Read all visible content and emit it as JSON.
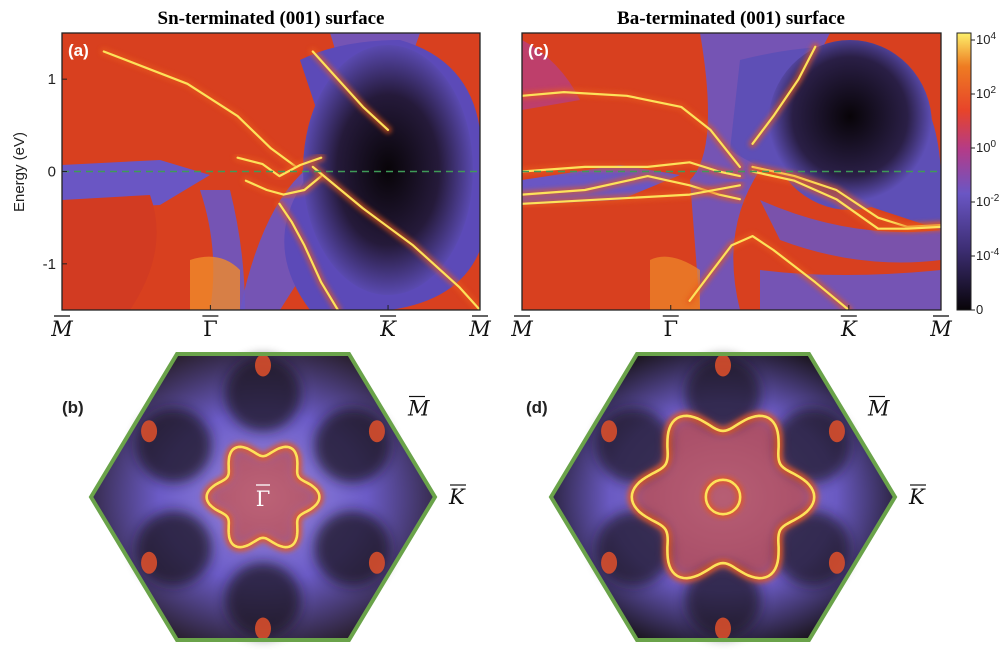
{
  "colors": {
    "low": "#080408",
    "purple": "#6a56c4",
    "mid": "#d4321f",
    "orange": "#e7581b",
    "high": "#fde25a",
    "hex_edge": "#6aa34a",
    "fermi": "#3f9a57"
  },
  "chart_data": [
    {
      "type": "heatmap",
      "panel": "(a)",
      "title": "Sn-terminated (001) surface",
      "ylabel": "Energy (eV)",
      "ylim": [
        -1.5,
        1.5
      ],
      "y_ticks": [
        "1",
        "0",
        "-1"
      ],
      "x_ticks": [
        "M",
        "Γ",
        "K",
        "M"
      ],
      "x_tick_style": [
        "italic",
        "upright",
        "italic",
        "italic"
      ],
      "fermi_level": 0,
      "bands": [
        [
          [
            0.1,
            1.3
          ],
          [
            0.3,
            0.95
          ],
          [
            0.42,
            0.6
          ],
          [
            0.5,
            0.25
          ],
          [
            0.56,
            0.05
          ]
        ],
        [
          [
            0.42,
            0.15
          ],
          [
            0.48,
            0.08
          ],
          [
            0.52,
            -0.05
          ],
          [
            0.57,
            0.07
          ],
          [
            0.62,
            0.15
          ]
        ],
        [
          [
            0.44,
            -0.1
          ],
          [
            0.49,
            -0.2
          ],
          [
            0.53,
            -0.25
          ],
          [
            0.58,
            -0.2
          ],
          [
            0.62,
            -0.05
          ]
        ],
        [
          [
            0.6,
            0.05
          ],
          [
            0.72,
            -0.4
          ],
          [
            0.84,
            -0.8
          ],
          [
            0.95,
            -1.25
          ],
          [
            1.0,
            -1.5
          ]
        ],
        [
          [
            0.52,
            -0.35
          ],
          [
            0.55,
            -0.55
          ],
          [
            0.58,
            -0.8
          ],
          [
            0.62,
            -1.2
          ],
          [
            0.66,
            -1.5
          ]
        ],
        [
          [
            0.6,
            1.3
          ],
          [
            0.66,
            1.0
          ],
          [
            0.72,
            0.7
          ],
          [
            0.78,
            0.45
          ]
        ]
      ]
    },
    {
      "type": "heatmap",
      "panel": "(c)",
      "title": "Ba-terminated (001) surface",
      "ylim": [
        -1.5,
        1.5
      ],
      "x_ticks": [
        "M",
        "Γ",
        "K",
        "M"
      ],
      "x_tick_style": [
        "italic",
        "upright",
        "italic",
        "italic"
      ],
      "fermi_level": 0,
      "bands": [
        [
          [
            0.0,
            0.82
          ],
          [
            0.1,
            0.86
          ],
          [
            0.25,
            0.82
          ],
          [
            0.38,
            0.7
          ],
          [
            0.45,
            0.45
          ],
          [
            0.52,
            0.05
          ]
        ],
        [
          [
            0.0,
            0.0
          ],
          [
            0.15,
            0.05
          ],
          [
            0.3,
            0.05
          ],
          [
            0.4,
            0.1
          ],
          [
            0.47,
            0.0
          ],
          [
            0.52,
            -0.05
          ]
        ],
        [
          [
            0.0,
            -0.25
          ],
          [
            0.15,
            -0.2
          ],
          [
            0.3,
            -0.05
          ],
          [
            0.4,
            -0.15
          ],
          [
            0.47,
            -0.25
          ],
          [
            0.52,
            -0.3
          ]
        ],
        [
          [
            0.0,
            -0.35
          ],
          [
            0.2,
            -0.3
          ],
          [
            0.4,
            -0.25
          ],
          [
            0.52,
            -0.15
          ]
        ],
        [
          [
            0.55,
            0.05
          ],
          [
            0.65,
            -0.05
          ],
          [
            0.75,
            -0.2
          ],
          [
            0.85,
            -0.5
          ],
          [
            0.92,
            -0.6
          ],
          [
            1.0,
            -0.58
          ]
        ],
        [
          [
            0.55,
            0.0
          ],
          [
            0.65,
            -0.1
          ],
          [
            0.75,
            -0.3
          ],
          [
            0.85,
            -0.62
          ],
          [
            0.92,
            -0.62
          ],
          [
            1.0,
            -0.6
          ]
        ],
        [
          [
            0.4,
            -1.4
          ],
          [
            0.45,
            -1.1
          ],
          [
            0.5,
            -0.8
          ],
          [
            0.55,
            -0.7
          ],
          [
            0.6,
            -0.85
          ],
          [
            0.7,
            -1.2
          ],
          [
            0.78,
            -1.5
          ]
        ],
        [
          [
            0.55,
            0.3
          ],
          [
            0.6,
            0.6
          ],
          [
            0.66,
            1.0
          ],
          [
            0.7,
            1.35
          ]
        ]
      ]
    },
    {
      "type": "heatmap",
      "panel": "(b)",
      "shape": "hexagon",
      "center_label": "Γ",
      "corner_labels": [
        "M",
        "K"
      ],
      "contour": {
        "kind": "hexagram",
        "radius": 0.34
      }
    },
    {
      "type": "heatmap",
      "panel": "(d)",
      "shape": "hexagon",
      "corner_labels": [
        "M",
        "K"
      ],
      "contour": {
        "kind": "hexagram_and_ring",
        "radius": 0.55,
        "ring_radius": 0.12
      }
    }
  ],
  "colorbar": {
    "ticks": [
      "10^4",
      "10^2",
      "10^0",
      "10^-2",
      "10^-4",
      "0"
    ]
  }
}
